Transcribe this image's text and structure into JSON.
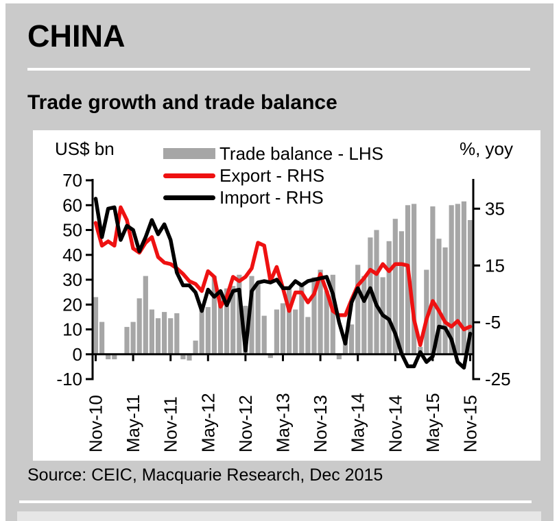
{
  "page": {
    "heading": "CHINA",
    "section_title": "Trade growth and trade balance",
    "source": "Source: CEIC, Macquarie Research, Dec 2015"
  },
  "colors": {
    "card_background": "#cacaca",
    "panel_background": "#ffffff",
    "bar_gray": "#a6a6a6",
    "export_red": "#ee1111",
    "import_black": "#000000",
    "bottom_strip": "#e6e6e6"
  },
  "chart_data": {
    "type": "combo (bar + line)",
    "title": "Trade growth and trade balance",
    "grid": "off",
    "legend_position": "top-center",
    "left_axis": {
      "label": "US$ bn",
      "min": -10,
      "max": 70,
      "ticks": [
        70,
        60,
        50,
        40,
        30,
        20,
        10,
        0,
        -10
      ]
    },
    "right_axis": {
      "label": "%, yoy",
      "min": -25,
      "max": 45,
      "ticks": [
        35,
        15,
        -5,
        -25
      ]
    },
    "x_ticks_shown": [
      "Nov-10",
      "May-11",
      "Nov-11",
      "May-12",
      "Nov-12",
      "May-13",
      "Nov-13",
      "May-14",
      "Nov-14",
      "May-15",
      "Nov-15"
    ],
    "x_tick_step": 6,
    "months": [
      "Nov-10",
      "Dec-10",
      "Jan-11",
      "Feb-11",
      "Mar-11",
      "Apr-11",
      "May-11",
      "Jun-11",
      "Jul-11",
      "Aug-11",
      "Sep-11",
      "Oct-11",
      "Nov-11",
      "Dec-11",
      "Jan-12",
      "Feb-12",
      "Mar-12",
      "Apr-12",
      "May-12",
      "Jun-12",
      "Jul-12",
      "Aug-12",
      "Sep-12",
      "Oct-12",
      "Nov-12",
      "Dec-12",
      "Jan-13",
      "Feb-13",
      "Mar-13",
      "Apr-13",
      "May-13",
      "Jun-13",
      "Jul-13",
      "Aug-13",
      "Sep-13",
      "Oct-13",
      "Nov-13",
      "Dec-13",
      "Jan-14",
      "Feb-14",
      "Mar-14",
      "Apr-14",
      "May-14",
      "Jun-14",
      "Jul-14",
      "Aug-14",
      "Sep-14",
      "Oct-14",
      "Nov-14",
      "Dec-14",
      "Jan-15",
      "Feb-15",
      "Mar-15",
      "Apr-15",
      "May-15",
      "Jun-15",
      "Jul-15",
      "Aug-15",
      "Sep-15",
      "Oct-15",
      "Nov-15"
    ],
    "legend": [
      {
        "label": "Trade balance - LHS",
        "swatch": "bar",
        "color": "#a6a6a6"
      },
      {
        "label": "Export - RHS",
        "swatch": "line",
        "color": "#ee1111"
      },
      {
        "label": "Import - RHS",
        "swatch": "line",
        "color": "#000000"
      }
    ],
    "series": [
      {
        "name": "Trade balance - LHS",
        "type": "bar",
        "axis": "left",
        "unit": "US$ bn",
        "color": "#a6a6a6",
        "values": [
          23,
          13,
          -2,
          -2,
          0,
          11,
          13,
          22.5,
          31.5,
          18,
          14.5,
          17,
          14.5,
          16.5,
          -2,
          -2.5,
          5.5,
          18.5,
          19,
          31.5,
          25,
          26.5,
          27.5,
          32,
          19.5,
          31.5,
          29,
          15.5,
          -1.5,
          18,
          20.5,
          27,
          18,
          28.5,
          15,
          31,
          34,
          25.5,
          32,
          -2,
          5,
          12,
          36,
          31.5,
          47,
          50,
          31,
          45.5,
          54.5,
          49.5,
          60,
          60.5,
          3,
          34,
          59.5,
          46.5,
          43,
          60,
          60.5,
          61.5,
          54
        ]
      },
      {
        "name": "Export - RHS",
        "type": "line",
        "axis": "right",
        "unit": "%, yoy",
        "color": "#ee1111",
        "values": [
          30,
          22,
          23.5,
          22,
          35.5,
          31,
          21,
          19.5,
          23,
          25,
          18,
          16,
          15.5,
          14,
          12,
          9.5,
          8.5,
          6,
          13,
          11,
          0.5,
          4,
          11,
          9.5,
          11,
          14,
          23,
          22,
          9.5,
          14.5,
          7,
          -1,
          5.5,
          5.5,
          2,
          5,
          12,
          6,
          -1,
          -2.5,
          -2.5,
          3,
          8,
          10.5,
          13.5,
          12,
          15.5,
          13,
          15.5,
          15.5,
          15,
          -4,
          -13,
          -4,
          2.5,
          -1,
          -5,
          -6.5,
          -4.5,
          -7.5,
          -6.5
        ]
      },
      {
        "name": "Import - RHS",
        "type": "line",
        "axis": "right",
        "unit": "%, yoy",
        "color": "#000000",
        "values": [
          38.5,
          25,
          35,
          35.5,
          24,
          29,
          27.5,
          20,
          25,
          31,
          26,
          29.5,
          24,
          12.5,
          8,
          8,
          5.5,
          -1,
          6.5,
          4,
          6,
          1,
          6,
          6.5,
          -15,
          6,
          9,
          9.5,
          9,
          10,
          7,
          7,
          9.5,
          8,
          9.5,
          10,
          10.5,
          11,
          5,
          -5,
          -12.5,
          2,
          7,
          2.5,
          7,
          1,
          -2.5,
          -4,
          -9,
          -16,
          -20.5,
          -20.5,
          -15.5,
          -19,
          -17,
          -6.5,
          -7,
          -11,
          -19,
          -21,
          -9
        ]
      }
    ]
  }
}
